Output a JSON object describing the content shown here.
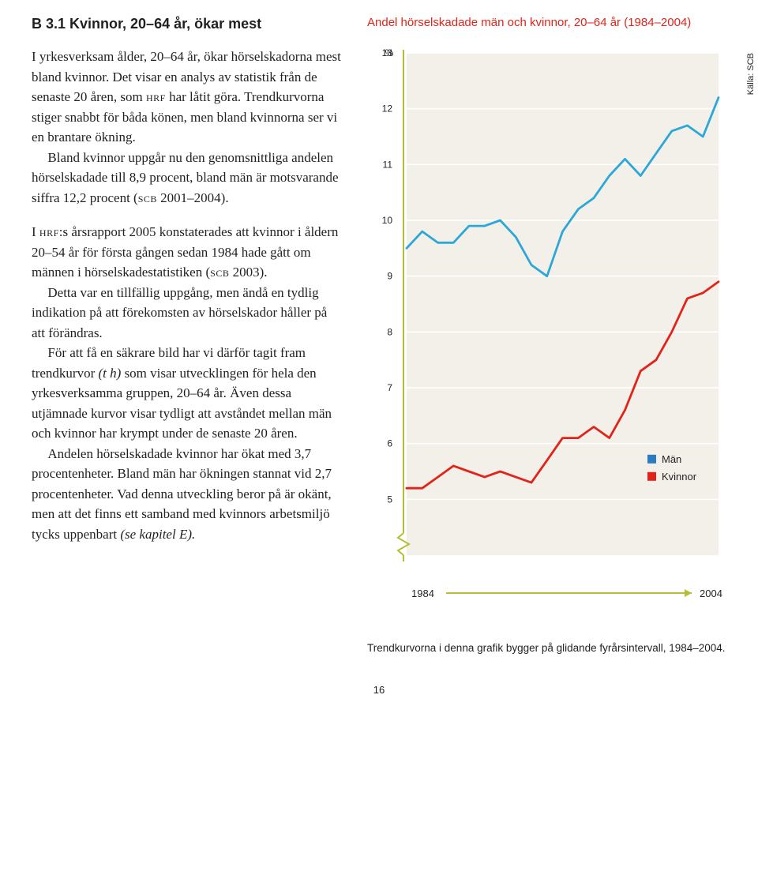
{
  "left": {
    "heading": "B 3.1 Kvinnor, 20–64 år, ökar mest",
    "p1a": "I yrkesverksam ålder, 20–64 år, ökar hörselskadorna mest bland kvinnor. Det visar en analys av statistik från de senaste 20 åren, som ",
    "p1b": " har låtit göra. Trendkurvorna stiger snabbt för båda könen, men bland kvinnorna ser vi en brantare ökning.",
    "p2a": "Bland kvinnor uppgår nu den genomsnittliga andelen hörselskadade till 8,9 procent, bland män är motsvarande siffra 12,2 procent (",
    "p2b": " 2001–2004).",
    "p3a": "I ",
    "p3b": ":s årsrapport 2005 konstaterades att kvinnor i åldern 20–54 år för första gången sedan 1984 hade gått om männen i hörselskadestatistiken (",
    "p3c": " 2003).",
    "p4": "Detta var en tillfällig uppgång, men ändå en tydlig indikation på att förekomsten av hörselskador håller på att förändras.",
    "p5a": "För att få en säkrare bild har vi därför tagit fram trendkurvor ",
    "p5_ital": "(t h)",
    "p5b": " som visar utvecklingen för hela den yrkesverksamma gruppen, 20–64 år. Även dessa utjämnade kurvor visar tydligt att avståndet mellan män och kvinnor har krympt under de senaste 20 åren.",
    "p6": "Andelen hörselskadade kvinnor har ökat med 3,7 procentenheter. Bland män har ökningen stannat vid 2,7 procentenheter. Vad denna utveckling beror på är okänt, men att det finns ett samband med kvinnors arbetsmiljö tycks uppenbart ",
    "p6_ital": "(se kapitel E).",
    "sc_hrf": "hrf",
    "sc_scb": "scb"
  },
  "chart": {
    "title": "Andel hörselskadade män och kvinnor, 20–64 år (1984–2004)",
    "title_color": "#e2231a",
    "source": "Källa: SCB",
    "type": "line",
    "ylabel": "%",
    "ylim": [
      4,
      13
    ],
    "yticks": [
      5,
      6,
      7,
      8,
      9,
      10,
      11,
      12,
      13
    ],
    "x_start_label": "1984",
    "x_end_label": "2004",
    "x_years": [
      1984,
      1985,
      1986,
      1987,
      1988,
      1989,
      1990,
      1991,
      1992,
      1993,
      1994,
      1995,
      1996,
      1997,
      1998,
      1999,
      2000,
      2001,
      2002,
      2003,
      2004
    ],
    "background_color": "#f2f0e9",
    "grid_color": "#ffffff",
    "axis_color": "#b5be34",
    "line_width": 2.8,
    "label_fontsize": 12,
    "series": {
      "men": {
        "label": "Män",
        "color": "#2ca7d8",
        "legend_color": "#2b7bbf",
        "values": [
          9.5,
          9.8,
          9.6,
          9.6,
          9.9,
          9.9,
          10.0,
          9.7,
          9.2,
          9.0,
          9.8,
          10.2,
          10.4,
          10.8,
          11.1,
          10.8,
          11.2,
          11.6,
          11.7,
          11.5,
          12.2
        ]
      },
      "women": {
        "label": "Kvinnor",
        "color": "#e2231a",
        "legend_color": "#e2231a",
        "values": [
          5.2,
          5.2,
          5.4,
          5.6,
          5.5,
          5.4,
          5.5,
          5.4,
          5.3,
          5.7,
          6.1,
          6.1,
          6.3,
          6.1,
          6.6,
          7.3,
          7.5,
          8.0,
          8.6,
          8.7,
          8.9
        ]
      }
    },
    "note": "Trendkurvorna i denna grafik bygger på glidande fyrårsintervall, 1984–2004."
  },
  "page_number": "16"
}
